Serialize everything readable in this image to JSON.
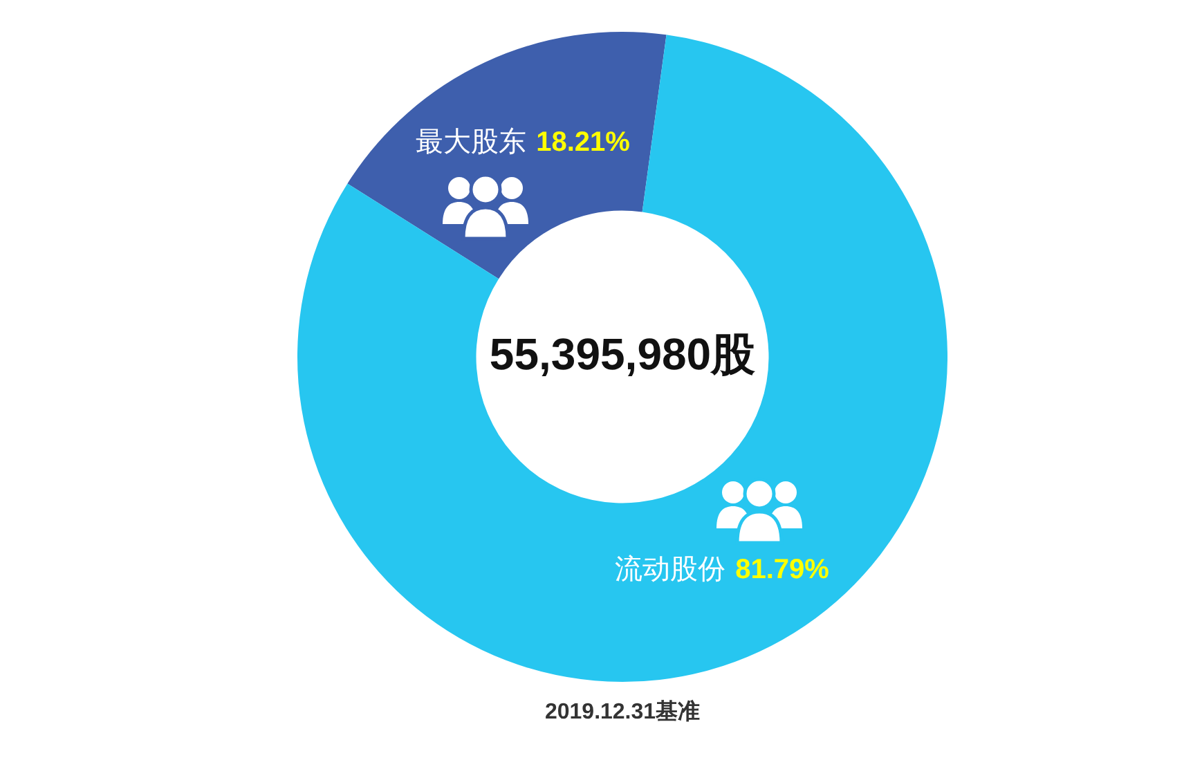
{
  "chart_data": {
    "type": "donut",
    "categories": [
      "最大股东",
      "流动股份"
    ],
    "values": [
      18.21,
      81.79
    ],
    "colors": [
      "#3e5fad",
      "#27c6f0"
    ],
    "value_labels": [
      "18.21%",
      "81.79%"
    ],
    "annotations": [
      "55,395,980股",
      "2019.12.31基准"
    ]
  }
}
